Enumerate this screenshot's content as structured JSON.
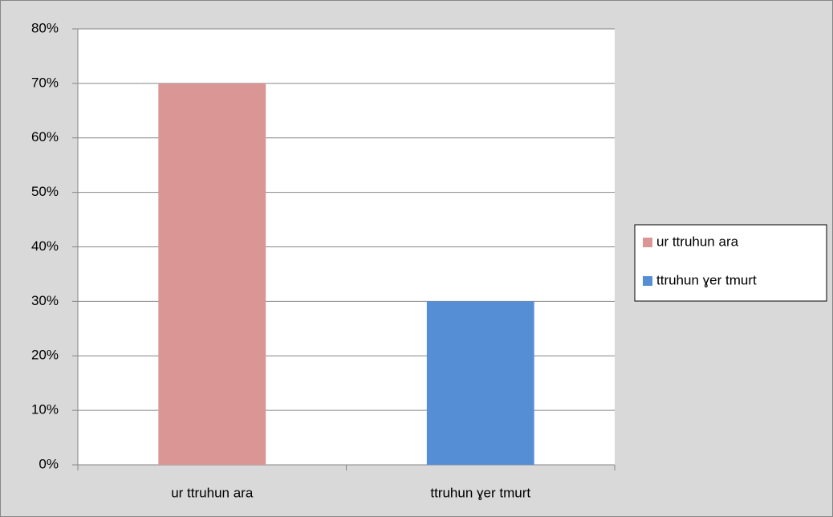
{
  "chart_data": {
    "type": "bar",
    "categories": [
      "ur ttruhun ara",
      "ttruhun ɣer tmurt"
    ],
    "values": [
      70,
      30
    ],
    "colors": [
      "#d99694",
      "#558ed5"
    ],
    "ylim": [
      0,
      80
    ],
    "yticks": [
      {
        "value": 0,
        "label": "0%"
      },
      {
        "value": 10,
        "label": "10%"
      },
      {
        "value": 20,
        "label": "20%"
      },
      {
        "value": 30,
        "label": "30%"
      },
      {
        "value": 40,
        "label": "40%"
      },
      {
        "value": 50,
        "label": "50%"
      },
      {
        "value": 60,
        "label": "60%"
      },
      {
        "value": 70,
        "label": "70%"
      },
      {
        "value": 80,
        "label": "80%"
      }
    ],
    "grid": true,
    "legend": "right"
  }
}
